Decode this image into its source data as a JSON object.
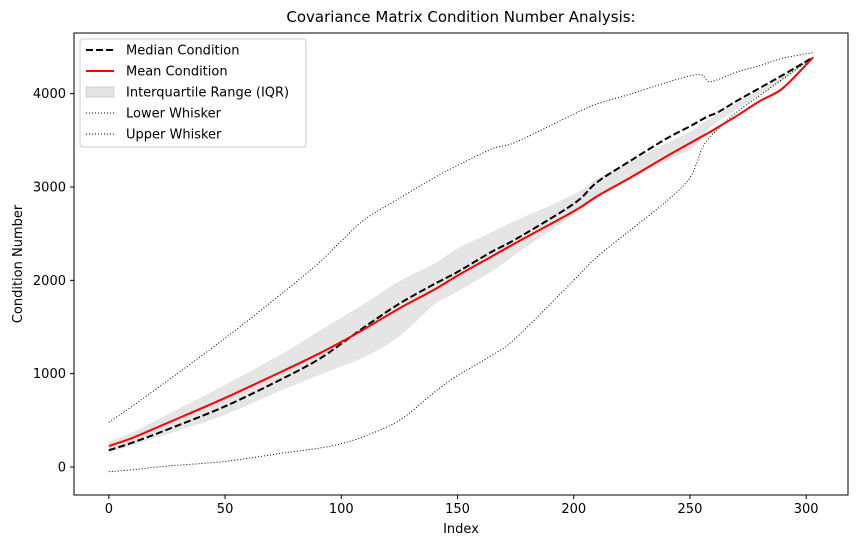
{
  "chart_data": {
    "type": "line",
    "title": "Covariance Matrix Condition Number Analysis:",
    "xlabel": "Index",
    "ylabel": "Condition Number",
    "xlim": [
      -15,
      318
    ],
    "ylim": [
      -300,
      4650
    ],
    "xticks": [
      0,
      50,
      100,
      150,
      200,
      250,
      300
    ],
    "yticks": [
      0,
      1000,
      2000,
      3000,
      4000
    ],
    "legend_position": "top-left",
    "x": [
      0,
      10,
      25,
      50,
      75,
      90,
      100,
      110,
      125,
      140,
      150,
      165,
      175,
      200,
      210,
      225,
      240,
      250,
      255,
      258,
      262,
      270,
      280,
      290,
      303
    ],
    "series": [
      {
        "name": "Median Condition",
        "style": "dashed",
        "color": "#000000",
        "values": [
          180,
          260,
          400,
          650,
          950,
          1150,
          1320,
          1500,
          1750,
          1960,
          2090,
          2310,
          2440,
          2820,
          3050,
          3290,
          3520,
          3650,
          3720,
          3760,
          3800,
          3920,
          4060,
          4200,
          4390
        ]
      },
      {
        "name": "Mean Condition",
        "style": "solid",
        "color": "#ff0000",
        "values": [
          225,
          310,
          470,
          740,
          1030,
          1210,
          1340,
          1480,
          1700,
          1900,
          2050,
          2260,
          2400,
          2740,
          2900,
          3110,
          3330,
          3470,
          3540,
          3580,
          3640,
          3760,
          3920,
          4060,
          4390
        ]
      },
      {
        "name": "Interquartile Range (IQR)",
        "style": "band",
        "color": "#d3d3d3",
        "lower": [
          150,
          230,
          350,
          560,
          830,
          980,
          1080,
          1180,
          1400,
          1740,
          1880,
          2100,
          2280,
          2700,
          2880,
          3090,
          3280,
          3400,
          3520,
          3620,
          3700,
          3830,
          3990,
          4140,
          4390
        ],
        "upper": [
          270,
          370,
          560,
          880,
          1220,
          1450,
          1600,
          1750,
          1990,
          2180,
          2340,
          2520,
          2640,
          2920,
          3090,
          3280,
          3470,
          3590,
          3680,
          3720,
          3780,
          3900,
          4040,
          4190,
          4390
        ]
      },
      {
        "name": "Lower Whisker",
        "style": "dotted",
        "color": "#000000",
        "values": [
          -50,
          -30,
          10,
          60,
          150,
          200,
          250,
          330,
          500,
          800,
          980,
          1200,
          1380,
          2000,
          2250,
          2550,
          2850,
          3100,
          3400,
          3520,
          3620,
          3800,
          3980,
          4160,
          4390
        ]
      },
      {
        "name": "Upper Whisker",
        "style": "dotted",
        "color": "#000000",
        "values": [
          480,
          650,
          920,
          1380,
          1870,
          2180,
          2420,
          2650,
          2880,
          3100,
          3230,
          3410,
          3480,
          3780,
          3890,
          4000,
          4120,
          4190,
          4200,
          4130,
          4150,
          4230,
          4300,
          4380,
          4440
        ]
      }
    ]
  }
}
